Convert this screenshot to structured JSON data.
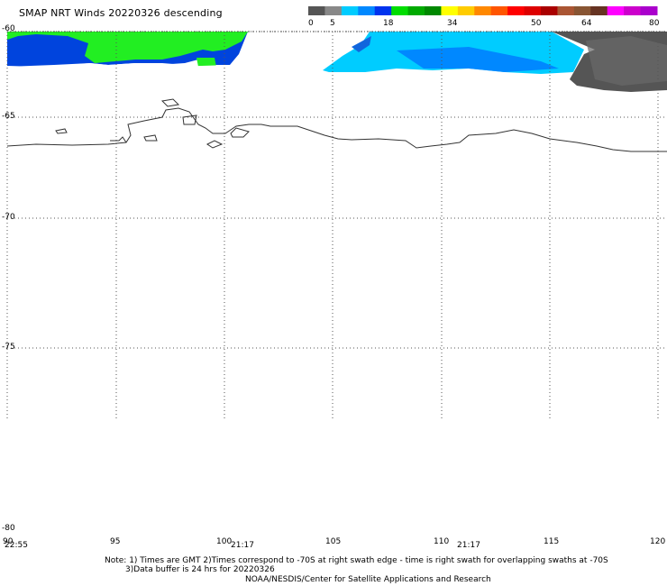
{
  "title": "SMAP NRT Winds  20220326 descending",
  "colorbar": {
    "tick_labels": [
      "0",
      "5",
      "18",
      "34",
      "50",
      "64",
      "80"
    ],
    "segments": [
      {
        "color": "#555555"
      },
      {
        "color": "#888888"
      },
      {
        "color": "#00ccff"
      },
      {
        "color": "#0088ff"
      },
      {
        "color": "#0033ee"
      },
      {
        "color": "#00dd00"
      },
      {
        "color": "#00aa00"
      },
      {
        "color": "#008800"
      },
      {
        "color": "#ffff00"
      },
      {
        "color": "#ffcc00"
      },
      {
        "color": "#ff8800"
      },
      {
        "color": "#ff5500"
      },
      {
        "color": "#ff0000"
      },
      {
        "color": "#dd0000"
      },
      {
        "color": "#aa0000"
      },
      {
        "color": "#aa5533"
      },
      {
        "color": "#885533"
      },
      {
        "color": "#663322"
      },
      {
        "color": "#ff00ff"
      },
      {
        "color": "#cc00cc"
      },
      {
        "color": "#aa00cc"
      }
    ]
  },
  "axes": {
    "lat_labels": [
      "-60",
      "-65",
      "-70",
      "-75",
      "-80"
    ],
    "lon_labels": [
      "90",
      "95",
      "100",
      "105",
      "110",
      "115",
      "120"
    ]
  },
  "swath_times": [
    "22:55",
    "21:17",
    "21:17"
  ],
  "notes": [
    "Note: 1) Times are GMT 2)Times correspond to -70S at right swath edge - time is right swath for overlapping swaths at -70S",
    "3)Data buffer is 24 hrs for 20220326",
    "NOAA/NESDIS/Center for Satellite Applications and Research"
  ]
}
